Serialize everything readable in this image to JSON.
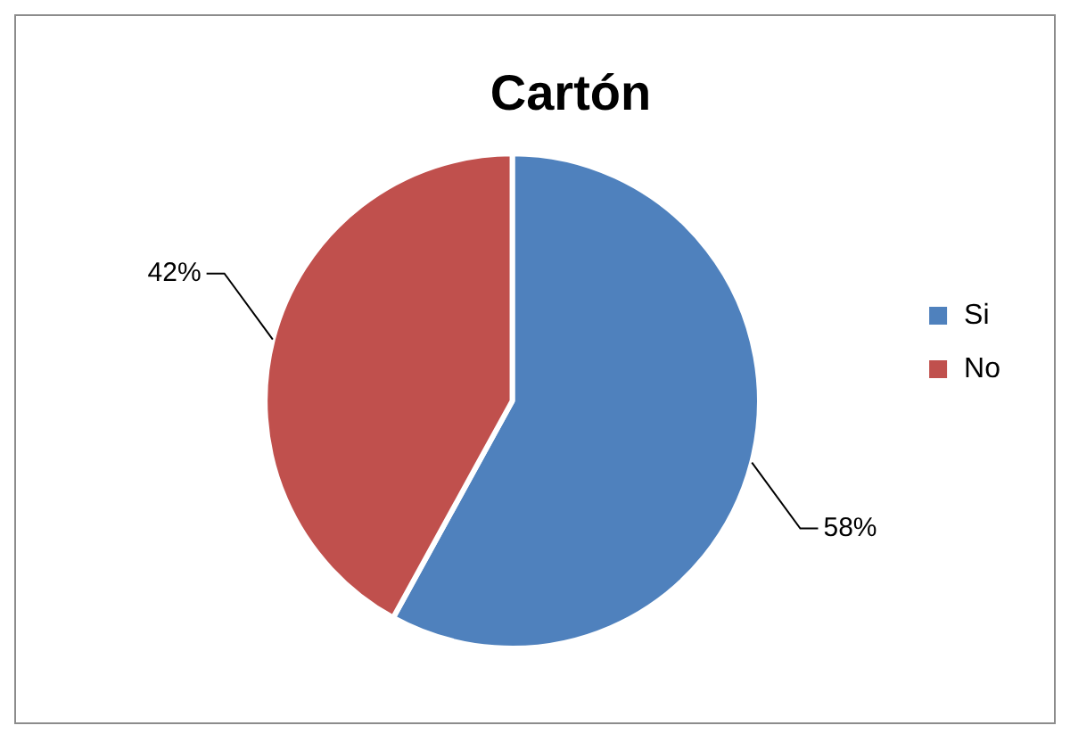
{
  "chart_data": {
    "type": "pie",
    "title": "Cartón",
    "categories": [
      "Si",
      "No"
    ],
    "values": [
      58,
      42
    ],
    "colors": [
      "#4f81bd",
      "#c0504d"
    ],
    "value_labels": [
      "58%",
      "42%"
    ],
    "legend": "right"
  }
}
